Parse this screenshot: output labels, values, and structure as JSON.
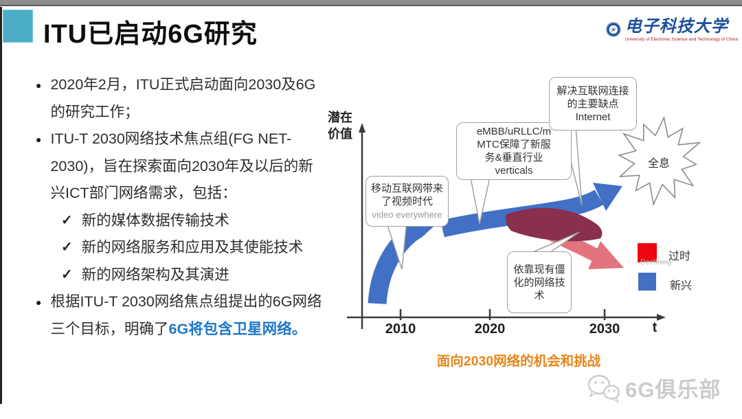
{
  "header": {
    "title": "ITU已启动6G研究"
  },
  "logo": {
    "name_cn": "电子科技大学",
    "name_en": "University of Electronic Science and Technology of China"
  },
  "icons": {
    "bullet": "●",
    "check": "✓"
  },
  "bullets": [
    "2020年2月，ITU正式启动面向2030及6G的研究工作；",
    "ITU-T 2030网络技术焦点组(FG NET-2030)，旨在探索面向2030年及以后的新兴ICT部门网络需求，包括："
  ],
  "checks": [
    "新的媒体数据传输技术",
    "新的网络服务和应用及其使能技术",
    "新的网络架构及其演进"
  ],
  "bullet3": {
    "prefix": "根据ITU-T 2030网络焦点组提出的6G网络三个目标，明确了",
    "highlight": "6G将包含卫星网络。"
  },
  "diagram": {
    "y_label_1": "潜在",
    "y_label_2": "价值",
    "x_ticks": [
      "2010",
      "2020",
      "2030"
    ],
    "x_axis_label": "t",
    "callouts": {
      "mobile": [
        "移动互联网带来",
        "了视频时代",
        "video everywhere"
      ],
      "embb": [
        "eMBB/uRLLC/m",
        "MTC保障了新服",
        "务&垂直行业",
        "verticals"
      ],
      "internet": [
        "解决互联网连接",
        "的主要缺点",
        "Internet"
      ],
      "legacy": [
        "依靠现有僵",
        "化的网络技",
        "术"
      ]
    },
    "star_label": "全息",
    "legend": [
      {
        "label": "过时",
        "ghost": "Declining",
        "color": "#ec0710"
      },
      {
        "label": "新兴",
        "ghost": "",
        "color": "#4170c4"
      }
    ],
    "caption": "面向2030网络的机会和挑战"
  },
  "watermark": {
    "text": "6G俱乐部"
  },
  "colors": {
    "accent_teal": "#4cadc6",
    "highlight_blue": "#2077c6",
    "caption_orange": "#e7861b",
    "arrow_blue": "#4170c4",
    "arrow_dark_red": "#8a2f4e",
    "arrow_light_red": "#e3747e",
    "legend_red": "#ec0710",
    "logo_blue": "#1c4f9c"
  }
}
